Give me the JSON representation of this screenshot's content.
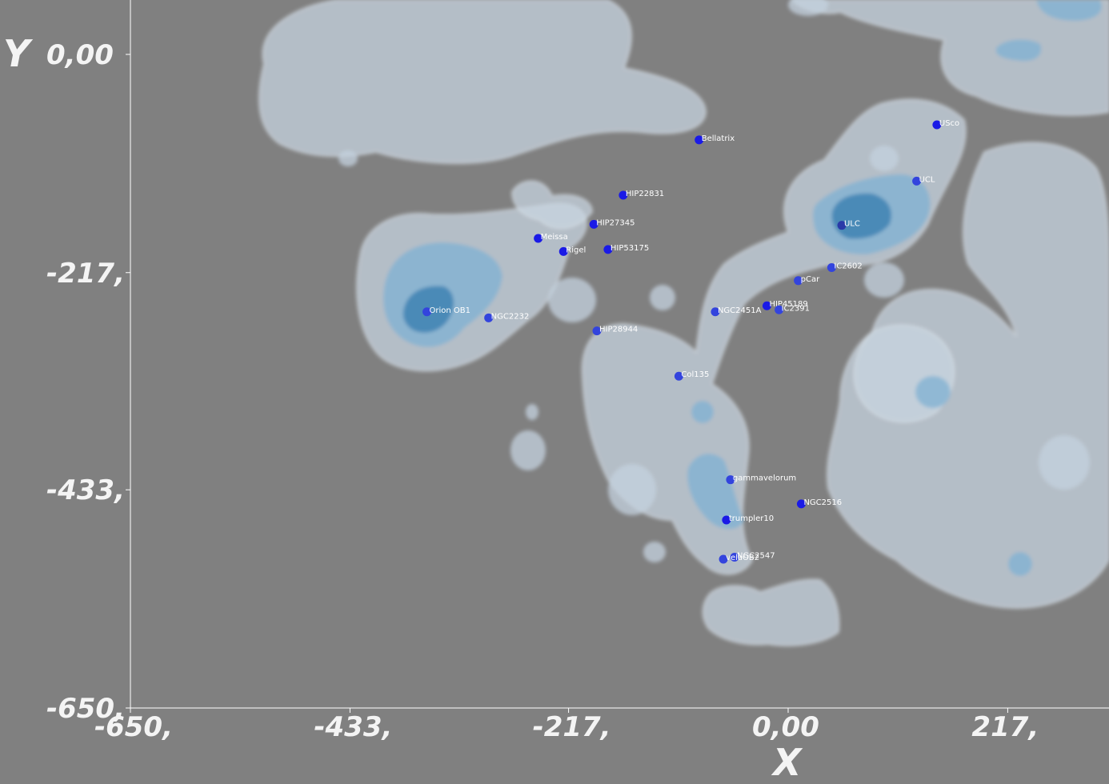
{
  "chart_data": {
    "type": "scatter",
    "xlabel": "Y",
    "ylabel": "Y",
    "xlabel_bottom": "X",
    "xlim": [
      -650,
      317
    ],
    "ylim": [
      -650,
      52
    ],
    "x_ticks": [
      {
        "value": -650,
        "label": "-650,"
      },
      {
        "value": -433,
        "label": "-433,"
      },
      {
        "value": -217,
        "label": "-217,"
      },
      {
        "value": 0,
        "label": "0,00"
      },
      {
        "value": 217,
        "label": "217,"
      }
    ],
    "y_ticks": [
      {
        "value": 0,
        "label": "0,00"
      },
      {
        "value": -217,
        "label": "-217,"
      },
      {
        "value": -433,
        "label": "-433,"
      },
      {
        "value": -650,
        "label": "-650,"
      }
    ],
    "points": [
      {
        "label": "Bellatrix",
        "x": -88,
        "y": -85,
        "color": "#1a1ae6"
      },
      {
        "label": "HIP22831",
        "x": -163,
        "y": -140,
        "color": "#1a1ae6"
      },
      {
        "label": "HIP27345",
        "x": -192,
        "y": -169,
        "color": "#1a1ae6"
      },
      {
        "label": "Meissa",
        "x": -247,
        "y": -183,
        "color": "#1a1ae6"
      },
      {
        "label": "Rigel",
        "x": -222,
        "y": -196,
        "color": "#1a1ae6"
      },
      {
        "label": "HIP53175",
        "x": -178,
        "y": -194,
        "color": "#1a1ae6"
      },
      {
        "label": "NGC2232",
        "x": -296,
        "y": -262,
        "color": "#3344dd"
      },
      {
        "label": "Orion OB1",
        "x": -357,
        "y": -256,
        "color": "#3344dd"
      },
      {
        "label": "HIP28944",
        "x": -189,
        "y": -275,
        "color": "#3344dd"
      },
      {
        "label": "Col135",
        "x": -108,
        "y": -320,
        "color": "#3344dd"
      },
      {
        "label": "NGC2451A",
        "x": -72,
        "y": -256,
        "color": "#3344dd"
      },
      {
        "label": "HIP45189",
        "x": -21,
        "y": -250,
        "color": "#1a1ae6"
      },
      {
        "label": "IC2391",
        "x": -9,
        "y": -254,
        "color": "#3344dd"
      },
      {
        "label": "IC2602",
        "x": 43,
        "y": -212,
        "color": "#3344dd"
      },
      {
        "label": "pCar",
        "x": 10,
        "y": -225,
        "color": "#3344dd"
      },
      {
        "label": "ULC",
        "x": 53,
        "y": -170,
        "color": "#2a3aa8"
      },
      {
        "label": "UCL",
        "x": 127,
        "y": -126,
        "color": "#3344dd"
      },
      {
        "label": "USco",
        "x": 147,
        "y": -70,
        "color": "#1a1ae6"
      },
      {
        "label": "gammavelorum",
        "x": -57,
        "y": -423,
        "color": "#3344dd"
      },
      {
        "label": "NGC2516",
        "x": 13,
        "y": -447,
        "color": "#1a1ae6"
      },
      {
        "label": "trumpler10",
        "x": -61,
        "y": -463,
        "color": "#1a1ae6"
      },
      {
        "label": "NGC2547",
        "x": -53,
        "y": -500,
        "color": "#3344dd"
      },
      {
        "label": "velaOB2",
        "x": -64,
        "y": -502,
        "color": "#3344dd"
      }
    ]
  }
}
